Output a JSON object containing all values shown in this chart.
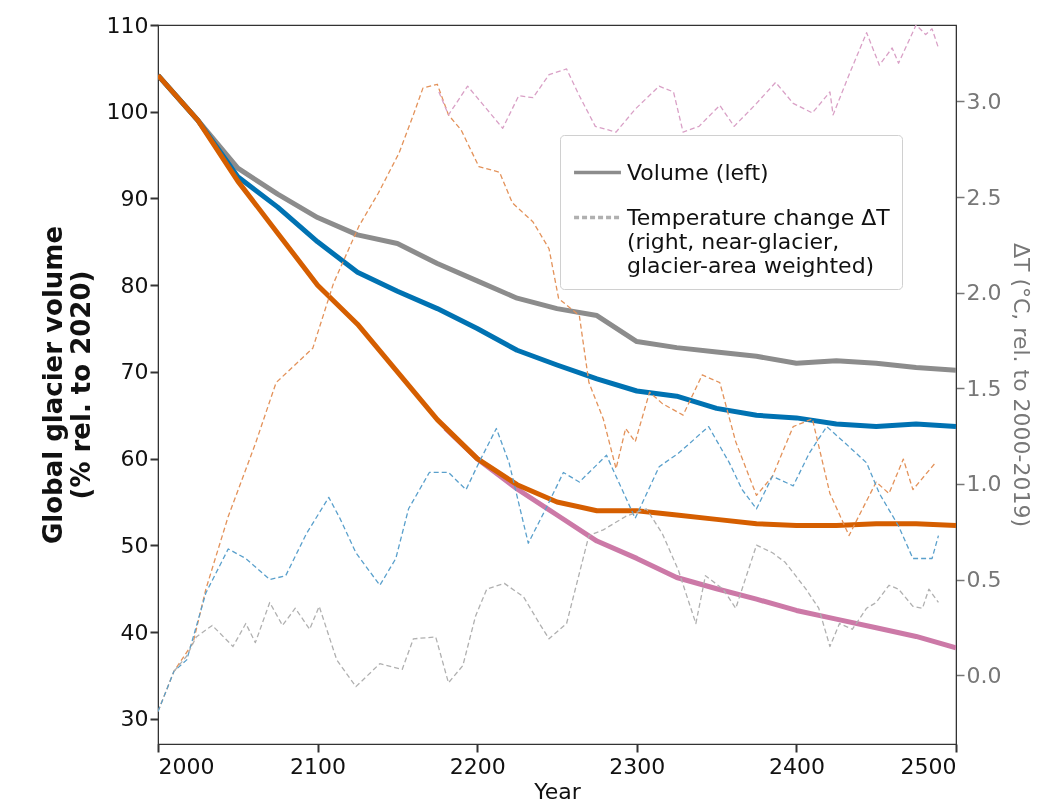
{
  "chart_data": {
    "type": "line",
    "xlabel": "Year",
    "ylabel": "Global glacier volume\n(% rel. to 2020)",
    "y2label": "ΔT (°C, rel. to 2000-2019)",
    "legend": "top right",
    "xlim": [
      2000,
      2500
    ],
    "xticks": [
      2000,
      2100,
      2200,
      2300,
      2400,
      2500
    ],
    "ylim": [
      27.1,
      110
    ],
    "yticks": [
      30,
      40,
      50,
      60,
      70,
      80,
      90,
      100,
      110
    ],
    "y2lim": [
      -0.36,
      3.4
    ],
    "y2ticks": [
      {
        "value": 0,
        "label": "0.0"
      },
      {
        "value": 0.5,
        "label": "0.5"
      },
      {
        "value": 1,
        "label": "1.0"
      },
      {
        "value": 1.5,
        "label": "1.5"
      },
      {
        "value": 2,
        "label": "2.0"
      },
      {
        "value": 2.5,
        "label": "2.5"
      },
      {
        "value": 3,
        "label": "3.0"
      }
    ],
    "x": [
      2000,
      2025,
      2050,
      2075,
      2100,
      2125,
      2150,
      2175,
      2200,
      2225,
      2250,
      2275,
      2300,
      2325,
      2350,
      2375,
      2400,
      2425,
      2450,
      2475,
      2500
    ],
    "series": [
      {
        "name": "Volume (left)",
        "color": "#8c8c8c",
        "values": [
          104.2,
          99,
          93.5,
          90.5,
          87.8,
          85.8,
          84.8,
          82.5,
          80.5,
          78.5,
          77.3,
          76.5,
          73.5,
          72.8,
          72.3,
          71.8,
          71,
          71.3,
          71,
          70.5,
          70.2
        ]
      },
      {
        "color": "#0072b2",
        "values": [
          104.2,
          99,
          92.5,
          89,
          85,
          81.5,
          79.3,
          77.3,
          75,
          72.5,
          70.8,
          69.2,
          67.8,
          67.2,
          65.8,
          65,
          64.7,
          64,
          63.7,
          64,
          63.7
        ]
      },
      {
        "color": "#cc79a7",
        "x": [
          2180,
          2200,
          2225,
          2250,
          2275,
          2300,
          2325,
          2350,
          2375,
          2400,
          2425,
          2450,
          2475,
          2500
        ],
        "values": [
          63.5,
          60,
          56.5,
          53.5,
          50.5,
          48.5,
          46.3,
          45,
          43.8,
          42.5,
          41.5,
          40.5,
          39.5,
          38.2
        ]
      },
      {
        "color": "#d55e00",
        "values": [
          104.2,
          99,
          92,
          86,
          80,
          75.5,
          70,
          64.5,
          60,
          57,
          55,
          54,
          54,
          53.5,
          53,
          52.5,
          52.3,
          52.3,
          52.5,
          52.5,
          52.3
        ]
      },
      {
        "color": "#e3925a",
        "axis": "y2",
        "line_style": "dashed",
        "x": [
          2000,
          2010,
          2022,
          2030,
          2044,
          2061,
          2074,
          2097,
          2110,
          2126,
          2138,
          2151,
          2160,
          2166,
          2175,
          2182,
          2190,
          2201,
          2214,
          2222,
          2235,
          2245,
          2251,
          2264,
          2270,
          2279,
          2287,
          2293,
          2299,
          2308,
          2316,
          2329,
          2341,
          2352,
          2362,
          2375,
          2385,
          2398,
          2410,
          2421,
          2433,
          2439,
          2450,
          2458,
          2467,
          2473,
          2487
        ],
        "values": [
          -0.19,
          0.02,
          0.17,
          0.45,
          0.83,
          1.21,
          1.53,
          1.71,
          2.05,
          2.35,
          2.52,
          2.73,
          2.93,
          3.07,
          3.09,
          2.93,
          2.85,
          2.66,
          2.63,
          2.47,
          2.37,
          2.23,
          1.97,
          1.88,
          1.53,
          1.34,
          1.08,
          1.29,
          1.22,
          1.48,
          1.42,
          1.36,
          1.57,
          1.53,
          1.22,
          0.94,
          1.04,
          1.3,
          1.34,
          0.95,
          0.73,
          0.83,
          1.01,
          0.95,
          1.13,
          0.97,
          1.11
        ]
      },
      {
        "color": "#5aa0cc",
        "axis": "y2",
        "line_style": "dashed",
        "x": [
          2000,
          2010,
          2018,
          2030,
          2044,
          2055,
          2070,
          2080,
          2093,
          2107,
          2114,
          2124,
          2139,
          2149,
          2157,
          2170,
          2182,
          2193,
          2201,
          2212,
          2220,
          2232,
          2243,
          2254,
          2264,
          2281,
          2299,
          2314,
          2326,
          2345,
          2358,
          2366,
          2375,
          2385,
          2398,
          2408,
          2419,
          2431,
          2444,
          2452,
          2464,
          2473,
          2485,
          2489
        ],
        "values": [
          -0.19,
          0.02,
          0.08,
          0.43,
          0.66,
          0.61,
          0.5,
          0.52,
          0.74,
          0.93,
          0.82,
          0.64,
          0.47,
          0.61,
          0.87,
          1.06,
          1.06,
          0.97,
          1.11,
          1.29,
          1.11,
          0.69,
          0.87,
          1.06,
          1.01,
          1.15,
          0.82,
          1.09,
          1.16,
          1.3,
          1.11,
          0.97,
          0.87,
          1.04,
          0.99,
          1.16,
          1.3,
          1.21,
          1.11,
          0.95,
          0.78,
          0.61,
          0.61,
          0.73
        ]
      },
      {
        "name": "Temperature change ΔT\n(right, near-glacier,\n glacier-area weighted)",
        "color": "#b0b0b0",
        "axis": "y2",
        "line_style": "dashed",
        "x": [
          2010,
          2018,
          2024,
          2034,
          2047,
          2055,
          2061,
          2070,
          2078,
          2086,
          2095,
          2101,
          2112,
          2124,
          2139,
          2153,
          2160,
          2174,
          2182,
          2191,
          2199,
          2206,
          2217,
          2229,
          2239,
          2245,
          2256,
          2270,
          2279,
          2293,
          2306,
          2316,
          2326,
          2337,
          2343,
          2354,
          2362,
          2375,
          2385,
          2393,
          2406,
          2414,
          2421,
          2427,
          2435,
          2444,
          2450,
          2458,
          2464,
          2473,
          2479,
          2483,
          2489
        ],
        "values": [
          0.02,
          0.1,
          0.2,
          0.26,
          0.15,
          0.27,
          0.17,
          0.38,
          0.26,
          0.35,
          0.24,
          0.36,
          0.08,
          -0.06,
          0.06,
          0.03,
          0.19,
          0.2,
          -0.04,
          0.05,
          0.31,
          0.45,
          0.48,
          0.41,
          0.27,
          0.19,
          0.27,
          0.73,
          0.76,
          0.83,
          0.87,
          0.74,
          0.55,
          0.27,
          0.52,
          0.45,
          0.35,
          0.68,
          0.64,
          0.59,
          0.45,
          0.35,
          0.15,
          0.27,
          0.24,
          0.35,
          0.38,
          0.47,
          0.45,
          0.36,
          0.35,
          0.45,
          0.38
        ]
      },
      {
        "color": "#d9a0c6",
        "axis": "y2",
        "line_style": "dashed",
        "x": [
          2176,
          2182,
          2194,
          2203,
          2216,
          2226,
          2235,
          2245,
          2256,
          2264,
          2274,
          2287,
          2299,
          2314,
          2323,
          2329,
          2339,
          2352,
          2361,
          2375,
          2387,
          2398,
          2410,
          2421,
          2423,
          2433,
          2444,
          2452,
          2460,
          2464,
          2475,
          2481,
          2485,
          2489
        ],
        "values": [
          3.05,
          2.93,
          3.08,
          2.99,
          2.86,
          3.03,
          3.02,
          3.14,
          3.17,
          3.03,
          2.87,
          2.84,
          2.96,
          3.08,
          3.05,
          2.84,
          2.87,
          2.98,
          2.87,
          2.99,
          3.1,
          2.99,
          2.94,
          3.05,
          2.93,
          3.14,
          3.36,
          3.19,
          3.28,
          3.2,
          3.4,
          3.35,
          3.38,
          3.28
        ]
      }
    ]
  }
}
